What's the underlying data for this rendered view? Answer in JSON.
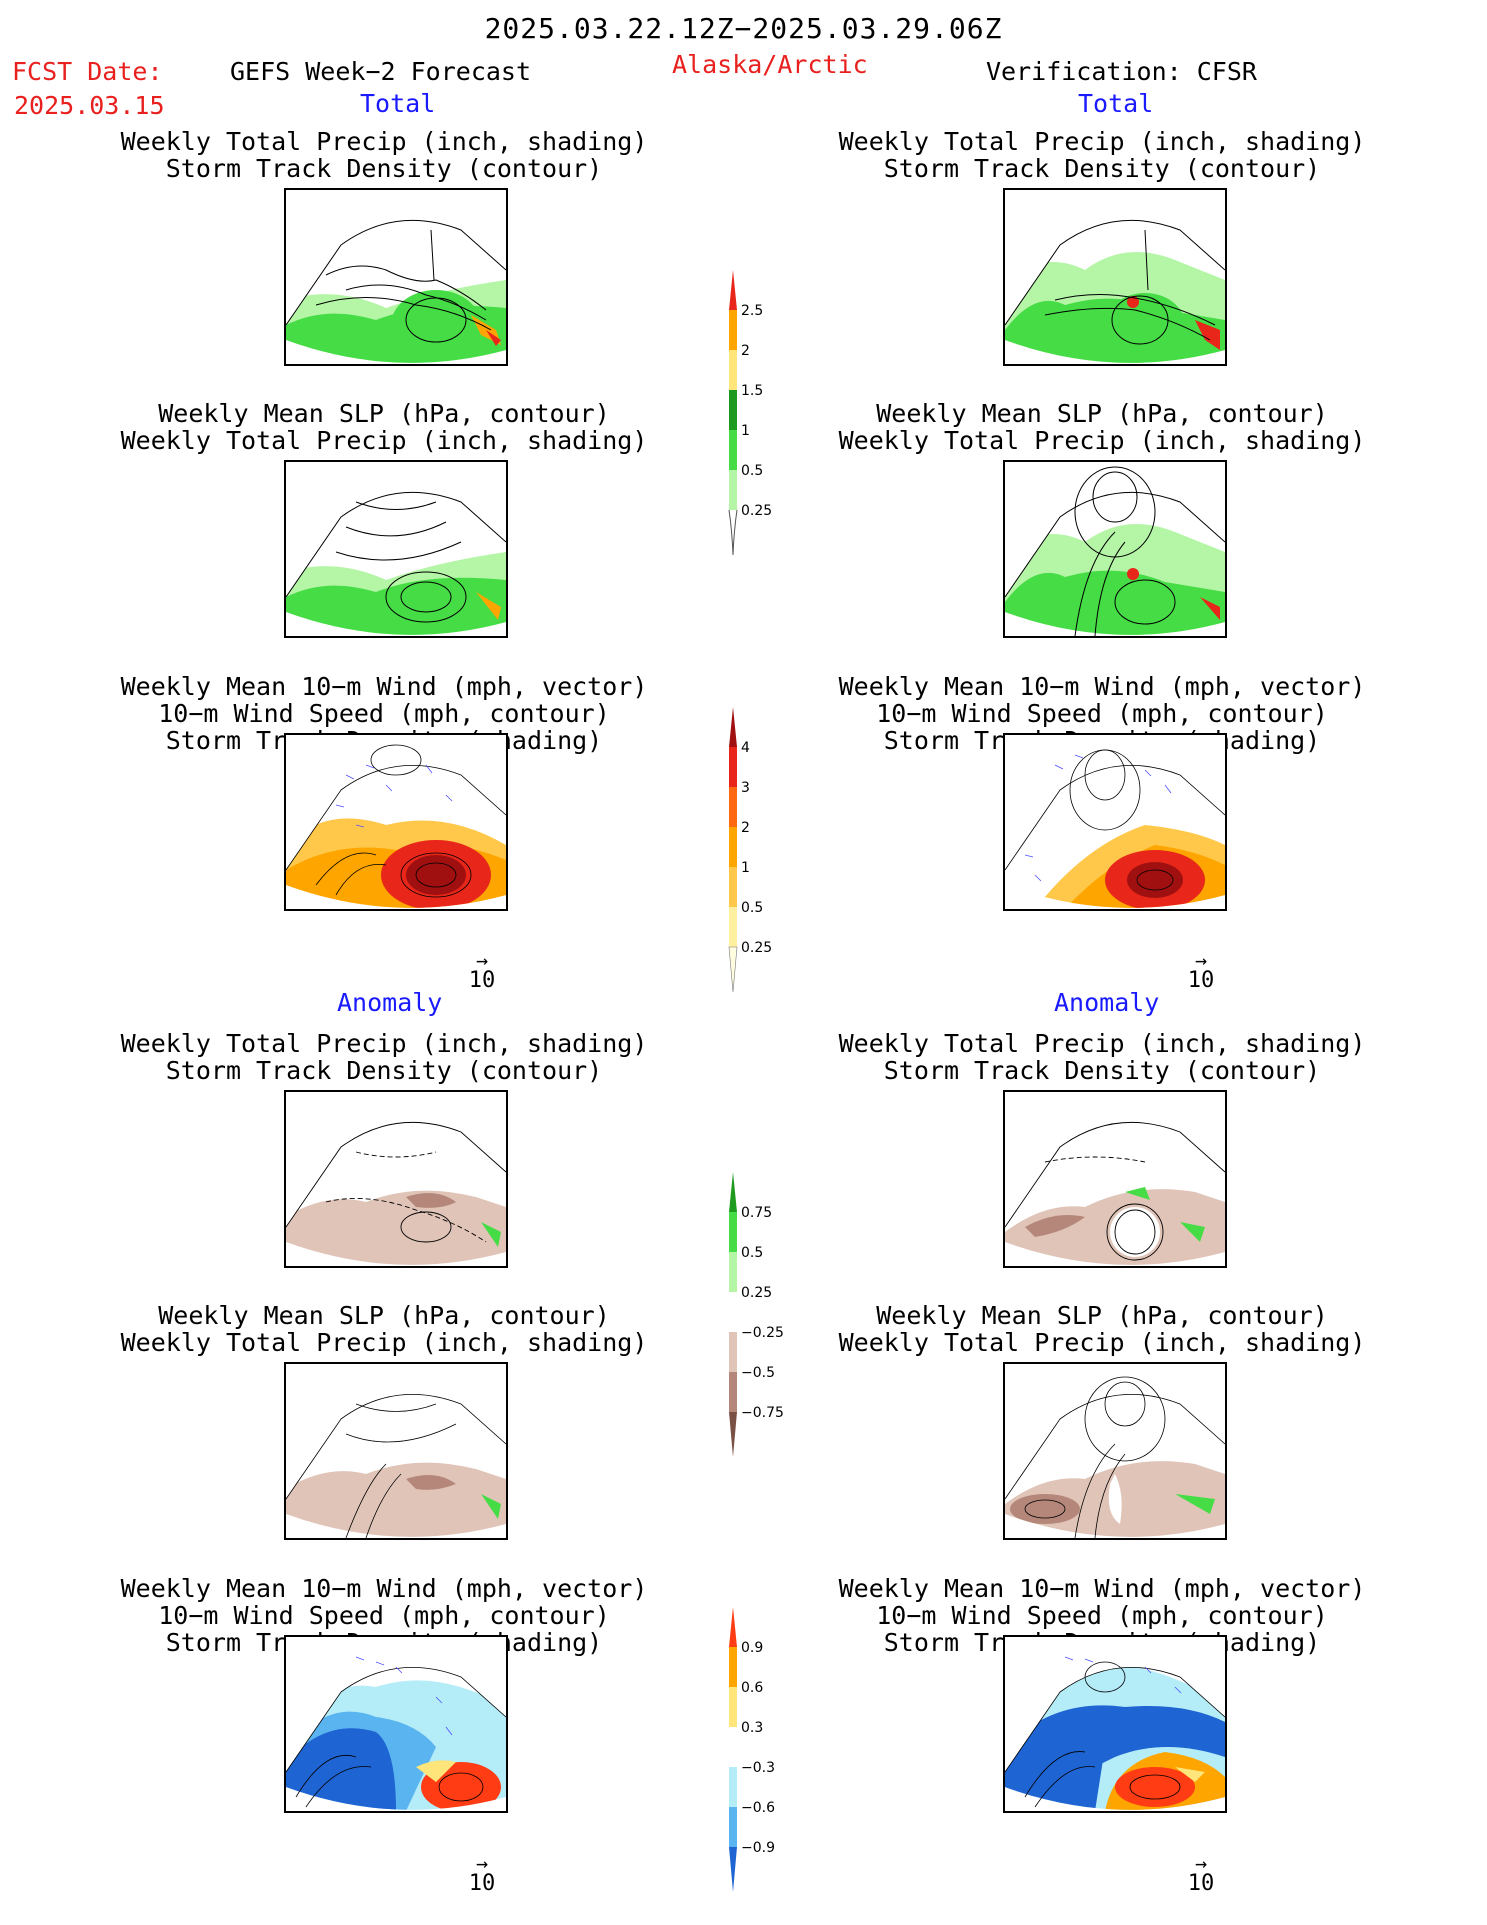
{
  "header": {
    "period": "2025.03.22.12Z−2025.03.29.06Z",
    "fcst_label": "FCST Date:",
    "fcst_date": "2025.03.15",
    "model": "GEFS Week−2 Forecast",
    "region": "Alaska/Arctic",
    "verification": "Verification: CFSR"
  },
  "sections": {
    "total": "Total",
    "anomaly": "Anomaly"
  },
  "panel_titles": {
    "precip_track": [
      "Weekly Total Precip (inch, shading)",
      "Storm Track Density (contour)"
    ],
    "slp_precip": [
      "Weekly Mean SLP (hPa, contour)",
      "Weekly Total Precip (inch, shading)"
    ],
    "wind": [
      "Weekly Mean 10−m Wind (mph, vector)",
      "10−m Wind Speed (mph, contour)",
      "Storm Track Density (shading)"
    ]
  },
  "reference_vector": "10",
  "colorbars": {
    "precip_total": {
      "labels": [
        "2.5",
        "2",
        "1.5",
        "1",
        "0.5",
        "0.25"
      ],
      "colors": [
        "#e8261a",
        "#ffa500",
        "#ffe57a",
        "#1e9b1e",
        "#46dc46",
        "#b4f5a6"
      ]
    },
    "track_total": {
      "labels": [
        "4",
        "3",
        "2",
        "1",
        "0.5",
        "0.25"
      ],
      "colors": [
        "#a01010",
        "#e8261a",
        "#ff6a10",
        "#ffa500",
        "#ffc84a",
        "#fff0a0",
        "#fffde0"
      ]
    },
    "precip_anom": {
      "labels": [
        "0.75",
        "0.5",
        "0.25",
        "−0.25",
        "−0.5",
        "−0.75"
      ],
      "colors": [
        "#1e9b1e",
        "#46dc46",
        "#b4f5a6",
        "#ffffff",
        "#e0c4b8",
        "#b4877a",
        "#7a5044"
      ]
    },
    "track_anom": {
      "labels": [
        "0.9",
        "0.6",
        "0.3",
        "−0.3",
        "−0.6",
        "−0.9"
      ],
      "colors": [
        "#ff3c14",
        "#ffa500",
        "#ffe57a",
        "#ffffff",
        "#b4ecf8",
        "#5ab4f0",
        "#1e64d2"
      ]
    }
  }
}
